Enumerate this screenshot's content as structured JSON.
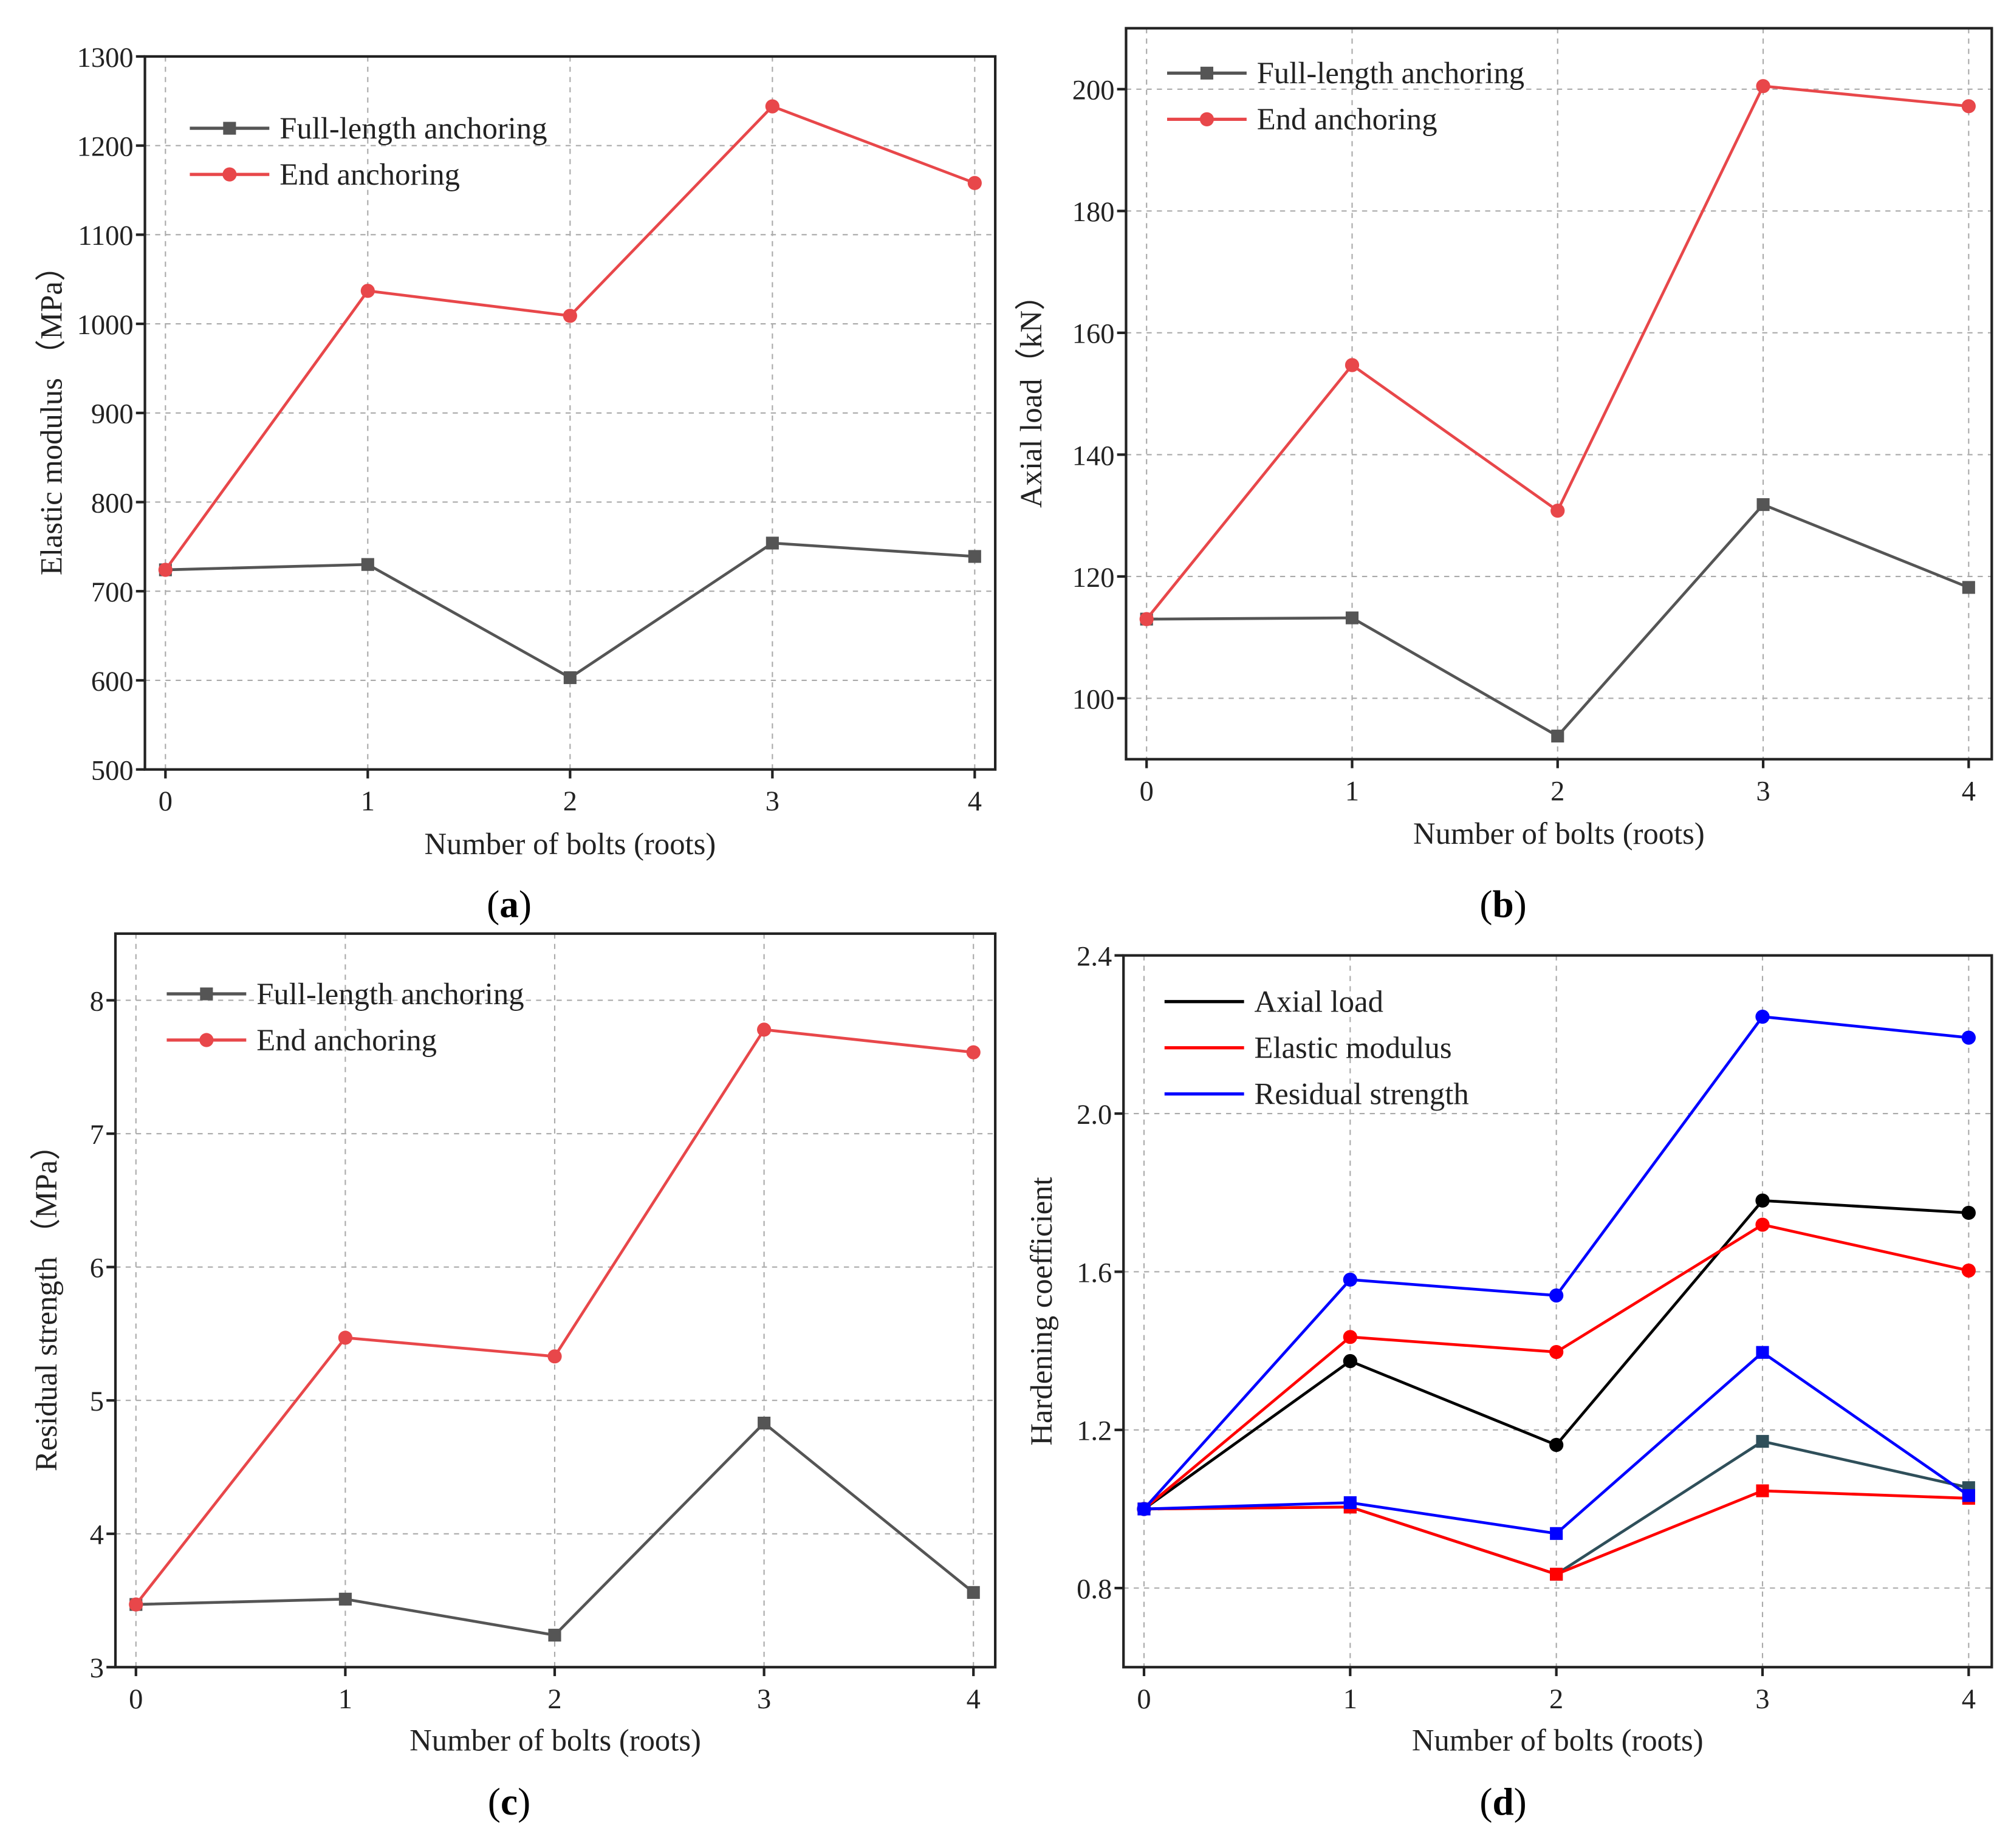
{
  "chart_data": [
    {
      "id": "a",
      "type": "line",
      "panel_label": "a",
      "xlabel": "Number of bolts (roots)",
      "ylabel": "Elastic modulus （MPa）",
      "x": [
        0,
        1,
        2,
        3,
        4
      ],
      "xticks": [
        "0",
        "1",
        "2",
        "3",
        "4"
      ],
      "ylim": [
        500,
        1300
      ],
      "yticks": [
        500,
        600,
        700,
        800,
        900,
        1000,
        1100,
        1200,
        1300
      ],
      "grid": true,
      "legend_position": "top-left",
      "series": [
        {
          "name": "Full-length anchoring",
          "color": "#555555",
          "marker": "square",
          "values": [
            724,
            730,
            603,
            754,
            739
          ]
        },
        {
          "name": "End anchoring",
          "color": "#e8474a",
          "marker": "circle",
          "values": [
            724,
            1037,
            1009,
            1244,
            1158
          ]
        }
      ]
    },
    {
      "id": "b",
      "type": "line",
      "panel_label": "b",
      "xlabel": "Number of bolts (roots)",
      "ylabel": "Axial load（kN）",
      "x": [
        0,
        1,
        2,
        3,
        4
      ],
      "xticks": [
        "0",
        "1",
        "2",
        "3",
        "4"
      ],
      "ylim": [
        90,
        210
      ],
      "yticks": [
        100,
        120,
        140,
        160,
        180,
        200
      ],
      "grid": true,
      "legend_position": "top-left",
      "series": [
        {
          "name": "Full-length anchoring",
          "color": "#555555",
          "marker": "square",
          "values": [
            113,
            113.2,
            93.8,
            131.8,
            118.2
          ]
        },
        {
          "name": "End anchoring",
          "color": "#e8474a",
          "marker": "circle",
          "values": [
            113,
            154.7,
            130.8,
            200.5,
            197.2
          ]
        }
      ]
    },
    {
      "id": "c",
      "type": "line",
      "panel_label": "c",
      "xlabel": "Number of bolts (roots)",
      "ylabel": "Residual strength （MPa）",
      "x": [
        0,
        1,
        2,
        3,
        4
      ],
      "xticks": [
        "0",
        "1",
        "2",
        "3",
        "4"
      ],
      "ylim": [
        3,
        8.5
      ],
      "yticks": [
        3,
        4,
        5,
        6,
        7,
        8
      ],
      "grid": true,
      "legend_position": "top-left",
      "series": [
        {
          "name": "Full-length anchoring",
          "color": "#555555",
          "marker": "square",
          "values": [
            3.47,
            3.51,
            3.24,
            4.83,
            3.56
          ]
        },
        {
          "name": "End anchoring",
          "color": "#e8474a",
          "marker": "circle",
          "values": [
            3.47,
            5.47,
            5.33,
            7.78,
            7.61
          ]
        }
      ]
    },
    {
      "id": "d",
      "type": "line",
      "panel_label": "d",
      "xlabel": "Number of bolts (roots)",
      "ylabel": "Hardening coefficient",
      "x": [
        0,
        1,
        2,
        3,
        4
      ],
      "xticks": [
        "0",
        "1",
        "2",
        "3",
        "4"
      ],
      "ylim": [
        0.6,
        2.4
      ],
      "yticks": [
        0.8,
        1.2,
        1.6,
        2.0,
        2.4
      ],
      "ytick_labels": [
        "0.8",
        "1.2",
        "1.6",
        "2.0",
        "2.4"
      ],
      "grid": true,
      "legend_position": "top-left",
      "series": [
        {
          "name": "Axial load",
          "color": "#000000",
          "marker": "circle",
          "values": [
            1.0,
            1.374,
            1.162,
            1.78,
            1.749
          ]
        },
        {
          "name": "Elastic modulus",
          "color": "#ff0000",
          "marker": "circle",
          "values": [
            1.0,
            1.435,
            1.397,
            1.719,
            1.603
          ]
        },
        {
          "name": "Residual strength",
          "color": "#0000ff",
          "marker": "circle",
          "values": [
            1.0,
            1.58,
            1.54,
            2.245,
            2.192
          ]
        },
        {
          "color": "#2f4f5a",
          "marker": "square",
          "values": [
            1.0,
            1.005,
            0.835,
            1.171,
            1.054
          ]
        },
        {
          "color": "#ff0000",
          "marker": "square",
          "values": [
            1.0,
            1.005,
            0.835,
            1.046,
            1.027
          ]
        },
        {
          "color": "#0000ff",
          "marker": "square",
          "values": [
            1.0,
            1.016,
            0.938,
            1.396,
            1.034
          ]
        }
      ]
    }
  ]
}
